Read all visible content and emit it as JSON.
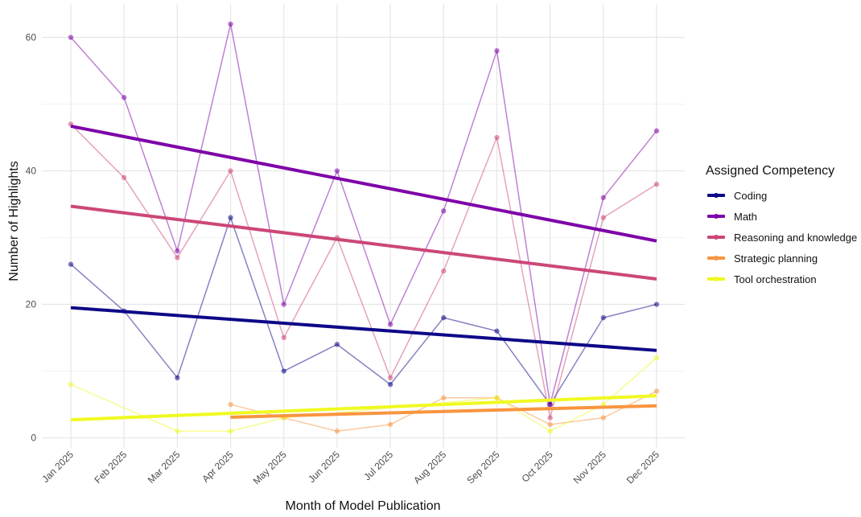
{
  "chart_data": {
    "type": "line",
    "title": "",
    "xlabel": "Month of Model Publication",
    "ylabel": "Number of Highlights",
    "categories": [
      "Jan 2025",
      "Feb 2025",
      "Mar 2025",
      "Apr 2025",
      "May 2025",
      "Jun 2025",
      "Jul 2025",
      "Aug 2025",
      "Sep 2025",
      "Oct 2025",
      "Nov 2025",
      "Dec 2025"
    ],
    "ylim": [
      -1.5,
      65
    ],
    "yticks": [
      0,
      20,
      40,
      60
    ],
    "grid": true,
    "legend_title": "Assigned Competency",
    "legend_position": "right",
    "series": [
      {
        "name": "Coding",
        "color": "#0d0887",
        "values": [
          26,
          19,
          9,
          33,
          10,
          14,
          8,
          18,
          16,
          5,
          18,
          20
        ],
        "trend": [
          19.5,
          13.1
        ]
      },
      {
        "name": "Math",
        "color": "#7e03a8",
        "values": [
          60,
          51,
          28,
          62,
          20,
          40,
          17,
          34,
          58,
          5,
          36,
          46
        ],
        "trend": [
          46.7,
          29.5
        ]
      },
      {
        "name": "Reasoning and knowledge",
        "color": "#cc4778",
        "values": [
          47,
          39,
          27,
          40,
          15,
          30,
          9,
          25,
          45,
          3,
          33,
          38
        ],
        "trend": [
          34.7,
          23.8
        ]
      },
      {
        "name": "Strategic planning",
        "color": "#f89540",
        "values": [
          null,
          null,
          null,
          5,
          3,
          1,
          2,
          6,
          6,
          2,
          3,
          7
        ],
        "trend_start_index": 3,
        "trend": [
          3.1,
          4.8
        ]
      },
      {
        "name": "Tool orchestration",
        "color": "#f0f921",
        "values": [
          8,
          null,
          1,
          1,
          3,
          null,
          null,
          null,
          6,
          1,
          5,
          12
        ],
        "trend": [
          2.7,
          6.3
        ]
      }
    ]
  }
}
